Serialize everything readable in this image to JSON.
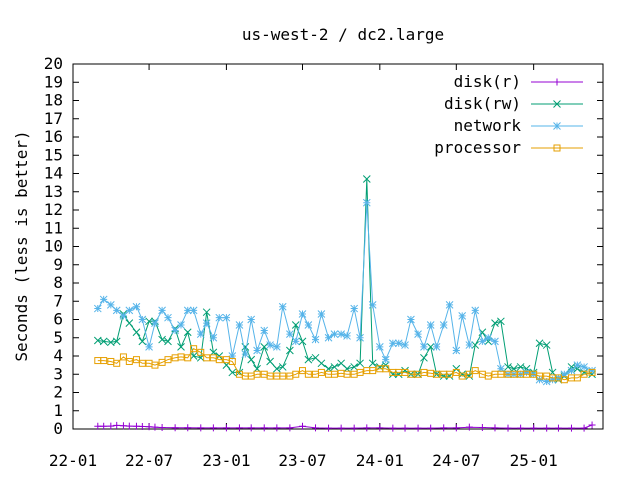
{
  "chart_data": {
    "type": "line",
    "title": "us-west-2 / dc2.large",
    "xlabel": "",
    "ylabel": "Seconds (less is better)",
    "ylim": [
      0,
      20
    ],
    "yticks": [
      "0",
      "1",
      "2",
      "3",
      "4",
      "5",
      "6",
      "7",
      "8",
      "9",
      "10",
      "11",
      "12",
      "13",
      "14",
      "15",
      "16",
      "17",
      "18",
      "19",
      "20"
    ],
    "xlim": [
      "2022-01-01",
      "2025-06-15"
    ],
    "xticks": [
      {
        "date": "2022-01-01",
        "label": "22-01"
      },
      {
        "date": "2022-07-01",
        "label": "22-07"
      },
      {
        "date": "2023-01-01",
        "label": "23-01"
      },
      {
        "date": "2023-07-01",
        "label": "23-07"
      },
      {
        "date": "2024-01-01",
        "label": "24-01"
      },
      {
        "date": "2024-07-01",
        "label": "24-07"
      },
      {
        "date": "2025-01-01",
        "label": "25-01"
      }
    ],
    "legend_position": "top-right",
    "series": [
      {
        "name": "disk(r)",
        "color": "#9400d3",
        "marker": "plus",
        "x": [
          "2022-03-01",
          "2022-03-15",
          "2022-04-01",
          "2022-04-15",
          "2022-05-01",
          "2022-05-15",
          "2022-06-01",
          "2022-06-15",
          "2022-07-01",
          "2022-07-15",
          "2022-08-01",
          "2022-09-01",
          "2022-10-01",
          "2022-11-01",
          "2022-12-01",
          "2023-01-01",
          "2023-02-01",
          "2023-03-01",
          "2023-04-01",
          "2023-05-01",
          "2023-06-01",
          "2023-07-01",
          "2023-08-01",
          "2023-09-01",
          "2023-10-01",
          "2023-11-01",
          "2023-12-01",
          "2024-01-01",
          "2024-02-01",
          "2024-03-01",
          "2024-04-01",
          "2024-05-01",
          "2024-06-01",
          "2024-07-01",
          "2024-08-01",
          "2024-09-01",
          "2024-10-01",
          "2024-11-01",
          "2024-12-01",
          "2025-01-01",
          "2025-02-01",
          "2025-03-01",
          "2025-04-01",
          "2025-05-01",
          "2025-05-20"
        ],
        "values": [
          0.15,
          0.15,
          0.16,
          0.2,
          0.18,
          0.16,
          0.15,
          0.14,
          0.12,
          0.1,
          0.08,
          0.07,
          0.07,
          0.06,
          0.06,
          0.06,
          0.06,
          0.06,
          0.06,
          0.06,
          0.06,
          0.15,
          0.06,
          0.05,
          0.05,
          0.05,
          0.06,
          0.06,
          0.05,
          0.05,
          0.05,
          0.05,
          0.06,
          0.06,
          0.1,
          0.08,
          0.06,
          0.05,
          0.05,
          0.05,
          0.05,
          0.05,
          0.05,
          0.05,
          0.22
        ]
      },
      {
        "name": "disk(rw)",
        "color": "#009e73",
        "marker": "cross",
        "x": [
          "2022-03-01",
          "2022-03-15",
          "2022-04-01",
          "2022-04-15",
          "2022-05-01",
          "2022-05-15",
          "2022-06-01",
          "2022-06-15",
          "2022-07-01",
          "2022-07-15",
          "2022-08-01",
          "2022-08-15",
          "2022-09-01",
          "2022-09-15",
          "2022-10-01",
          "2022-10-15",
          "2022-11-01",
          "2022-11-15",
          "2022-12-01",
          "2022-12-15",
          "2023-01-01",
          "2023-01-15",
          "2023-02-01",
          "2023-02-15",
          "2023-03-01",
          "2023-03-15",
          "2023-04-01",
          "2023-04-15",
          "2023-05-01",
          "2023-05-15",
          "2023-06-01",
          "2023-06-15",
          "2023-07-01",
          "2023-07-15",
          "2023-08-01",
          "2023-08-15",
          "2023-09-01",
          "2023-09-15",
          "2023-10-01",
          "2023-10-15",
          "2023-11-01",
          "2023-11-15",
          "2023-12-01",
          "2023-12-15",
          "2024-01-01",
          "2024-01-15",
          "2024-02-01",
          "2024-02-15",
          "2024-03-01",
          "2024-03-15",
          "2024-04-01",
          "2024-04-15",
          "2024-05-01",
          "2024-05-15",
          "2024-06-01",
          "2024-06-15",
          "2024-07-01",
          "2024-07-15",
          "2024-08-01",
          "2024-08-15",
          "2024-09-01",
          "2024-09-15",
          "2024-10-01",
          "2024-10-15",
          "2024-11-01",
          "2024-11-15",
          "2024-12-01",
          "2024-12-15",
          "2025-01-01",
          "2025-01-15",
          "2025-02-01",
          "2025-02-15",
          "2025-03-01",
          "2025-03-15",
          "2025-04-01",
          "2025-04-15",
          "2025-05-01",
          "2025-05-20"
        ],
        "values": [
          4.85,
          4.8,
          4.75,
          4.8,
          6.3,
          5.8,
          5.3,
          4.8,
          5.9,
          5.9,
          4.9,
          4.8,
          5.5,
          4.5,
          5.3,
          4.0,
          3.9,
          6.4,
          4.2,
          4.0,
          3.5,
          3.1,
          3.1,
          4.5,
          3.8,
          3.3,
          4.5,
          3.7,
          3.3,
          3.4,
          4.3,
          5.7,
          4.8,
          3.8,
          3.9,
          3.6,
          3.3,
          3.4,
          3.6,
          3.3,
          3.4,
          3.6,
          13.7,
          3.6,
          3.4,
          3.5,
          3.0,
          3.0,
          3.2,
          3.0,
          3.0,
          3.9,
          4.5,
          3.0,
          2.9,
          2.9,
          3.3,
          3.0,
          2.9,
          4.6,
          5.3,
          4.8,
          5.8,
          5.9,
          3.4,
          3.3,
          3.4,
          3.3,
          3.1,
          4.7,
          4.6,
          3.1,
          2.7,
          2.9,
          3.4,
          3.3,
          3.1,
          3.0
        ]
      },
      {
        "name": "network",
        "color": "#56b4e9",
        "marker": "star",
        "x": [
          "2022-03-01",
          "2022-03-15",
          "2022-04-01",
          "2022-04-15",
          "2022-05-01",
          "2022-05-15",
          "2022-06-01",
          "2022-06-15",
          "2022-07-01",
          "2022-07-15",
          "2022-08-01",
          "2022-08-15",
          "2022-09-01",
          "2022-09-15",
          "2022-10-01",
          "2022-10-15",
          "2022-11-01",
          "2022-11-15",
          "2022-12-01",
          "2022-12-15",
          "2023-01-01",
          "2023-01-15",
          "2023-02-01",
          "2023-02-15",
          "2023-03-01",
          "2023-03-15",
          "2023-04-01",
          "2023-04-15",
          "2023-05-01",
          "2023-05-15",
          "2023-06-01",
          "2023-06-15",
          "2023-07-01",
          "2023-07-15",
          "2023-08-01",
          "2023-08-15",
          "2023-09-01",
          "2023-09-15",
          "2023-10-01",
          "2023-10-15",
          "2023-11-01",
          "2023-11-15",
          "2023-12-01",
          "2023-12-15",
          "2024-01-01",
          "2024-01-15",
          "2024-02-01",
          "2024-02-15",
          "2024-03-01",
          "2024-03-15",
          "2024-04-01",
          "2024-04-15",
          "2024-05-01",
          "2024-05-15",
          "2024-06-01",
          "2024-06-15",
          "2024-07-01",
          "2024-07-15",
          "2024-08-01",
          "2024-08-15",
          "2024-09-01",
          "2024-09-15",
          "2024-10-01",
          "2024-10-15",
          "2024-11-01",
          "2024-11-15",
          "2024-12-01",
          "2024-12-15",
          "2025-01-01",
          "2025-01-15",
          "2025-02-01",
          "2025-02-15",
          "2025-03-01",
          "2025-03-15",
          "2025-04-01",
          "2025-04-15",
          "2025-05-01",
          "2025-05-20"
        ],
        "values": [
          6.6,
          7.1,
          6.8,
          6.5,
          6.2,
          6.5,
          6.7,
          6.0,
          4.5,
          5.8,
          6.5,
          6.1,
          5.4,
          5.7,
          6.5,
          6.5,
          5.2,
          5.8,
          5.0,
          6.1,
          6.1,
          4.0,
          5.7,
          4.1,
          6.0,
          4.3,
          5.4,
          4.6,
          4.5,
          6.7,
          5.2,
          4.8,
          6.3,
          5.7,
          4.9,
          6.3,
          5.0,
          5.2,
          5.2,
          5.1,
          6.6,
          5.0,
          12.4,
          6.8,
          4.5,
          3.8,
          4.7,
          4.7,
          4.6,
          6.0,
          5.2,
          4.5,
          5.7,
          4.5,
          5.7,
          6.8,
          4.3,
          6.2,
          4.6,
          6.5,
          4.8,
          5.0,
          4.8,
          3.3,
          3.0,
          3.0,
          3.0,
          3.1,
          3.0,
          2.7,
          2.6,
          2.7,
          2.8,
          3.0,
          3.2,
          3.5,
          3.4,
          3.2
        ]
      },
      {
        "name": "processor",
        "color": "#e69f00",
        "marker": "square",
        "x": [
          "2022-03-01",
          "2022-03-15",
          "2022-04-01",
          "2022-04-15",
          "2022-05-01",
          "2022-05-15",
          "2022-06-01",
          "2022-06-15",
          "2022-07-01",
          "2022-07-15",
          "2022-08-01",
          "2022-08-15",
          "2022-09-01",
          "2022-09-15",
          "2022-10-01",
          "2022-10-15",
          "2022-11-01",
          "2022-11-15",
          "2022-12-01",
          "2022-12-15",
          "2023-01-01",
          "2023-01-15",
          "2023-02-01",
          "2023-02-15",
          "2023-03-01",
          "2023-03-15",
          "2023-04-01",
          "2023-04-15",
          "2023-05-01",
          "2023-05-15",
          "2023-06-01",
          "2023-06-15",
          "2023-07-01",
          "2023-07-15",
          "2023-08-01",
          "2023-08-15",
          "2023-09-01",
          "2023-09-15",
          "2023-10-01",
          "2023-10-15",
          "2023-11-01",
          "2023-11-15",
          "2023-12-01",
          "2023-12-15",
          "2024-01-01",
          "2024-01-15",
          "2024-02-01",
          "2024-02-15",
          "2024-03-01",
          "2024-03-15",
          "2024-04-01",
          "2024-04-15",
          "2024-05-01",
          "2024-05-15",
          "2024-06-01",
          "2024-06-15",
          "2024-07-01",
          "2024-07-15",
          "2024-08-01",
          "2024-08-15",
          "2024-09-01",
          "2024-09-15",
          "2024-10-01",
          "2024-10-15",
          "2024-11-01",
          "2024-11-15",
          "2024-12-01",
          "2024-12-15",
          "2025-01-01",
          "2025-01-15",
          "2025-02-01",
          "2025-02-15",
          "2025-03-01",
          "2025-03-15",
          "2025-04-01",
          "2025-04-15",
          "2025-05-01",
          "2025-05-20"
        ],
        "values": [
          3.75,
          3.75,
          3.7,
          3.6,
          3.95,
          3.7,
          3.8,
          3.6,
          3.6,
          3.5,
          3.65,
          3.8,
          3.9,
          3.95,
          3.9,
          4.4,
          4.2,
          3.9,
          3.9,
          3.8,
          3.8,
          3.7,
          3.0,
          2.9,
          2.9,
          3.0,
          3.0,
          2.9,
          2.9,
          2.9,
          2.9,
          3.0,
          3.2,
          3.0,
          3.0,
          3.1,
          3.0,
          3.0,
          3.05,
          3.0,
          3.0,
          3.1,
          3.2,
          3.2,
          3.3,
          3.3,
          3.1,
          3.1,
          3.1,
          3.0,
          3.0,
          3.1,
          3.05,
          3.0,
          3.0,
          3.0,
          3.1,
          2.9,
          3.0,
          3.2,
          3.0,
          2.9,
          3.0,
          3.0,
          3.0,
          3.0,
          3.0,
          3.0,
          3.0,
          2.9,
          2.9,
          2.8,
          2.8,
          2.7,
          2.8,
          2.8,
          3.0,
          3.1
        ]
      }
    ]
  }
}
